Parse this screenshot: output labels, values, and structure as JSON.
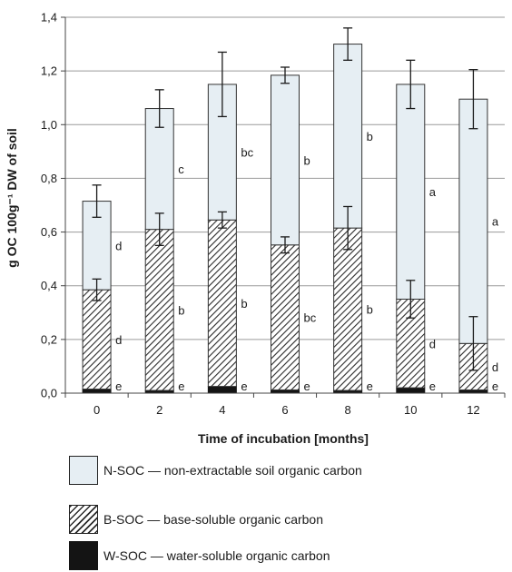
{
  "chart_data": {
    "type": "bar",
    "stacked": true,
    "categories": [
      "0",
      "2",
      "4",
      "6",
      "8",
      "10",
      "12"
    ],
    "xlabel": "Time of incubation [months]",
    "ylabel": "g OC 100g⁻¹ DW of soil",
    "ylim": [
      0,
      1.4
    ],
    "yticks": [
      "0,0",
      "0,2",
      "0,4",
      "0,6",
      "0,8",
      "1,0",
      "1,2",
      "1,4"
    ],
    "grid": "horizontal",
    "colors": {
      "nsoc": "#e6eef3",
      "bsoc": "#2a2a2a",
      "wsoc": "#141414"
    },
    "series": [
      {
        "name": "W-SOC",
        "values": [
          0.015,
          0.01,
          0.025,
          0.012,
          0.01,
          0.02,
          0.012
        ],
        "letters": [
          "e",
          "e",
          "e",
          "e",
          "e",
          "e",
          "e"
        ]
      },
      {
        "name": "B-SOC",
        "values": [
          0.37,
          0.6,
          0.62,
          0.54,
          0.605,
          0.33,
          0.173
        ],
        "error": [
          0.04,
          0.06,
          0.03,
          0.03,
          0.08,
          0.07,
          0.1
        ],
        "letters": [
          "d",
          "b",
          "b",
          "bc",
          "b",
          "d",
          "d"
        ]
      },
      {
        "name": "N-SOC",
        "values": [
          0.33,
          0.45,
          0.505,
          0.632,
          0.685,
          0.8,
          0.91
        ],
        "error": [
          0.06,
          0.07,
          0.12,
          0.03,
          0.06,
          0.09,
          0.11
        ],
        "letters": [
          "d",
          "c",
          "bc",
          "b",
          "b",
          "a",
          "a"
        ]
      }
    ]
  },
  "legend": {
    "items": [
      {
        "label": "N-SOC  — non-extractable soil organic carbon"
      },
      {
        "label": "B-SOC  — base-soluble organic carbon"
      },
      {
        "label": "W-SOC  — water-soluble organic carbon"
      }
    ]
  }
}
